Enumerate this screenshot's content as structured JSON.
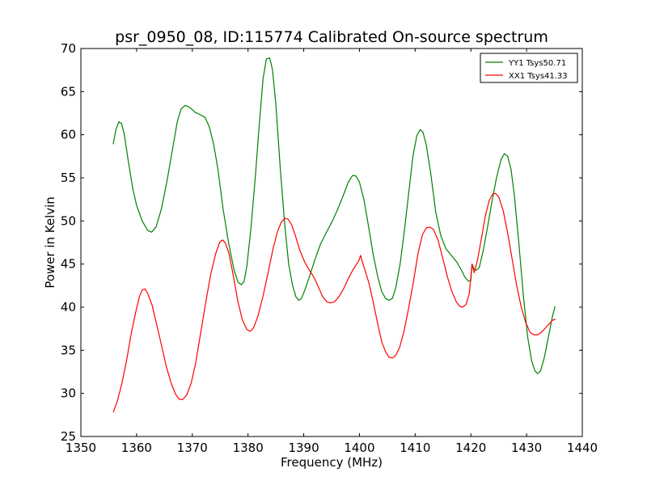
{
  "chart_data": {
    "type": "line",
    "title": "psr_0950_08, ID:115774 Calibrated On-source spectrum",
    "xlabel": "Frequency (MHz)",
    "ylabel": "Power in Kelvin",
    "xlim": [
      1350,
      1440
    ],
    "ylim": [
      25,
      70
    ],
    "xticks": [
      1350,
      1360,
      1370,
      1380,
      1390,
      1400,
      1410,
      1420,
      1430,
      1440
    ],
    "yticks": [
      25,
      30,
      35,
      40,
      45,
      50,
      55,
      60,
      65,
      70
    ],
    "grid": false,
    "legend_position": "top-right",
    "series": [
      {
        "name": "YY1 Tsys50.71",
        "color": "#008000",
        "points": [
          [
            1355.8,
            58.9
          ],
          [
            1356.3,
            60.6
          ],
          [
            1356.8,
            61.5
          ],
          [
            1357.3,
            61.3
          ],
          [
            1357.8,
            60.0
          ],
          [
            1358.5,
            57.0
          ],
          [
            1359.3,
            53.8
          ],
          [
            1360.0,
            51.8
          ],
          [
            1361.0,
            50.0
          ],
          [
            1362.0,
            48.9
          ],
          [
            1362.7,
            48.7
          ],
          [
            1363.5,
            49.3
          ],
          [
            1364.5,
            51.5
          ],
          [
            1365.5,
            54.8
          ],
          [
            1366.5,
            58.5
          ],
          [
            1367.3,
            61.5
          ],
          [
            1368.0,
            63.0
          ],
          [
            1368.7,
            63.4
          ],
          [
            1369.5,
            63.2
          ],
          [
            1370.5,
            62.6
          ],
          [
            1371.5,
            62.3
          ],
          [
            1372.3,
            62.0
          ],
          [
            1373.0,
            61.0
          ],
          [
            1373.8,
            59.0
          ],
          [
            1374.6,
            56.0
          ],
          [
            1375.5,
            51.5
          ],
          [
            1376.5,
            47.5
          ],
          [
            1377.5,
            44.3
          ],
          [
            1378.2,
            42.9
          ],
          [
            1378.8,
            42.6
          ],
          [
            1379.3,
            43.0
          ],
          [
            1379.8,
            44.8
          ],
          [
            1380.5,
            49.0
          ],
          [
            1381.3,
            55.0
          ],
          [
            1382.0,
            61.0
          ],
          [
            1382.7,
            66.5
          ],
          [
            1383.3,
            68.8
          ],
          [
            1383.9,
            68.9
          ],
          [
            1384.4,
            67.5
          ],
          [
            1385.0,
            63.5
          ],
          [
            1385.8,
            56.0
          ],
          [
            1386.6,
            49.5
          ],
          [
            1387.3,
            45.0
          ],
          [
            1388.0,
            42.5
          ],
          [
            1388.6,
            41.2
          ],
          [
            1389.1,
            40.8
          ],
          [
            1389.6,
            41.0
          ],
          [
            1390.2,
            42.0
          ],
          [
            1391.0,
            43.5
          ],
          [
            1392.0,
            45.5
          ],
          [
            1393.0,
            47.3
          ],
          [
            1394.0,
            48.6
          ],
          [
            1395.0,
            49.8
          ],
          [
            1396.0,
            51.2
          ],
          [
            1397.0,
            52.8
          ],
          [
            1398.0,
            54.5
          ],
          [
            1398.8,
            55.3
          ],
          [
            1399.4,
            55.2
          ],
          [
            1400.0,
            54.5
          ],
          [
            1400.8,
            52.5
          ],
          [
            1401.6,
            49.5
          ],
          [
            1402.5,
            46.0
          ],
          [
            1403.3,
            43.5
          ],
          [
            1404.0,
            41.8
          ],
          [
            1404.7,
            41.0
          ],
          [
            1405.3,
            40.8
          ],
          [
            1405.9,
            41.0
          ],
          [
            1406.5,
            42.2
          ],
          [
            1407.3,
            45.0
          ],
          [
            1408.0,
            48.5
          ],
          [
            1408.8,
            53.0
          ],
          [
            1409.6,
            57.5
          ],
          [
            1410.3,
            59.9
          ],
          [
            1410.9,
            60.6
          ],
          [
            1411.4,
            60.3
          ],
          [
            1412.0,
            58.8
          ],
          [
            1412.8,
            55.5
          ],
          [
            1413.7,
            51.0
          ],
          [
            1414.6,
            48.3
          ],
          [
            1415.5,
            46.8
          ],
          [
            1416.5,
            46.0
          ],
          [
            1417.5,
            45.2
          ],
          [
            1418.3,
            44.3
          ],
          [
            1419.0,
            43.4
          ],
          [
            1419.6,
            43.0
          ],
          [
            1420.0,
            43.1
          ],
          [
            1420.2,
            45.0
          ],
          [
            1420.6,
            44.4
          ],
          [
            1421.0,
            44.3
          ],
          [
            1421.5,
            44.6
          ],
          [
            1422.2,
            46.5
          ],
          [
            1423.0,
            49.3
          ],
          [
            1423.8,
            52.3
          ],
          [
            1424.6,
            55.0
          ],
          [
            1425.4,
            57.1
          ],
          [
            1426.0,
            57.8
          ],
          [
            1426.6,
            57.5
          ],
          [
            1427.2,
            56.0
          ],
          [
            1427.8,
            53.0
          ],
          [
            1428.6,
            47.5
          ],
          [
            1429.4,
            41.5
          ],
          [
            1430.2,
            36.5
          ],
          [
            1430.9,
            33.8
          ],
          [
            1431.5,
            32.6
          ],
          [
            1432.0,
            32.3
          ],
          [
            1432.5,
            32.6
          ],
          [
            1433.2,
            34.2
          ],
          [
            1433.9,
            36.5
          ],
          [
            1434.6,
            38.8
          ],
          [
            1435.1,
            40.1
          ]
        ]
      },
      {
        "name": "XX1 Tsys41.33",
        "color": "#ff0000",
        "points": [
          [
            1355.8,
            27.8
          ],
          [
            1356.5,
            29.0
          ],
          [
            1357.3,
            31.0
          ],
          [
            1358.2,
            33.8
          ],
          [
            1359.0,
            36.8
          ],
          [
            1359.8,
            39.3
          ],
          [
            1360.5,
            41.2
          ],
          [
            1361.0,
            42.0
          ],
          [
            1361.5,
            42.1
          ],
          [
            1362.0,
            41.6
          ],
          [
            1362.8,
            40.2
          ],
          [
            1363.6,
            38.0
          ],
          [
            1364.5,
            35.5
          ],
          [
            1365.3,
            33.2
          ],
          [
            1366.2,
            31.2
          ],
          [
            1367.0,
            29.9
          ],
          [
            1367.7,
            29.3
          ],
          [
            1368.3,
            29.3
          ],
          [
            1369.0,
            29.8
          ],
          [
            1369.8,
            31.2
          ],
          [
            1370.6,
            33.5
          ],
          [
            1371.5,
            37.0
          ],
          [
            1372.4,
            40.5
          ],
          [
            1373.3,
            43.8
          ],
          [
            1374.2,
            46.2
          ],
          [
            1374.9,
            47.5
          ],
          [
            1375.4,
            47.8
          ],
          [
            1375.9,
            47.5
          ],
          [
            1376.6,
            46.2
          ],
          [
            1377.4,
            43.5
          ],
          [
            1378.2,
            40.6
          ],
          [
            1379.0,
            38.5
          ],
          [
            1379.8,
            37.4
          ],
          [
            1380.4,
            37.2
          ],
          [
            1381.0,
            37.6
          ],
          [
            1381.8,
            39.0
          ],
          [
            1382.7,
            41.3
          ],
          [
            1383.6,
            44.0
          ],
          [
            1384.5,
            46.8
          ],
          [
            1385.3,
            48.8
          ],
          [
            1386.0,
            49.9
          ],
          [
            1386.6,
            50.3
          ],
          [
            1387.2,
            50.2
          ],
          [
            1387.8,
            49.6
          ],
          [
            1388.5,
            48.3
          ],
          [
            1389.3,
            46.6
          ],
          [
            1390.2,
            45.2
          ],
          [
            1391.0,
            44.3
          ],
          [
            1391.8,
            43.5
          ],
          [
            1392.6,
            42.4
          ],
          [
            1393.4,
            41.2
          ],
          [
            1394.2,
            40.6
          ],
          [
            1394.8,
            40.5
          ],
          [
            1395.5,
            40.6
          ],
          [
            1396.3,
            41.2
          ],
          [
            1397.2,
            42.2
          ],
          [
            1398.0,
            43.3
          ],
          [
            1398.8,
            44.3
          ],
          [
            1399.5,
            45.0
          ],
          [
            1399.9,
            45.4
          ],
          [
            1400.2,
            46.0
          ],
          [
            1400.5,
            45.3
          ],
          [
            1401.0,
            44.3
          ],
          [
            1401.7,
            42.8
          ],
          [
            1402.5,
            40.5
          ],
          [
            1403.3,
            38.0
          ],
          [
            1404.0,
            36.0
          ],
          [
            1404.7,
            34.8
          ],
          [
            1405.3,
            34.2
          ],
          [
            1405.9,
            34.1
          ],
          [
            1406.5,
            34.4
          ],
          [
            1407.2,
            35.3
          ],
          [
            1408.0,
            37.2
          ],
          [
            1408.8,
            39.8
          ],
          [
            1409.7,
            43.0
          ],
          [
            1410.5,
            46.2
          ],
          [
            1411.3,
            48.4
          ],
          [
            1412.0,
            49.2
          ],
          [
            1412.6,
            49.3
          ],
          [
            1413.3,
            49.0
          ],
          [
            1414.1,
            47.8
          ],
          [
            1414.9,
            45.8
          ],
          [
            1415.8,
            43.5
          ],
          [
            1416.6,
            41.8
          ],
          [
            1417.4,
            40.6
          ],
          [
            1418.0,
            40.1
          ],
          [
            1418.5,
            40.0
          ],
          [
            1419.1,
            40.3
          ],
          [
            1419.7,
            41.5
          ],
          [
            1420.0,
            43.5
          ],
          [
            1420.2,
            45.0
          ],
          [
            1420.6,
            44.0
          ],
          [
            1421.2,
            45.5
          ],
          [
            1421.9,
            48.0
          ],
          [
            1422.6,
            50.6
          ],
          [
            1423.3,
            52.4
          ],
          [
            1423.9,
            53.1
          ],
          [
            1424.4,
            53.2
          ],
          [
            1425.0,
            52.8
          ],
          [
            1425.8,
            51.2
          ],
          [
            1426.6,
            48.6
          ],
          [
            1427.4,
            45.6
          ],
          [
            1428.2,
            42.6
          ],
          [
            1429.0,
            40.1
          ],
          [
            1429.8,
            38.3
          ],
          [
            1430.6,
            37.1
          ],
          [
            1431.3,
            36.8
          ],
          [
            1432.0,
            36.8
          ],
          [
            1432.7,
            37.1
          ],
          [
            1433.4,
            37.6
          ],
          [
            1434.1,
            38.1
          ],
          [
            1434.7,
            38.5
          ],
          [
            1435.2,
            38.6
          ]
        ]
      }
    ]
  }
}
